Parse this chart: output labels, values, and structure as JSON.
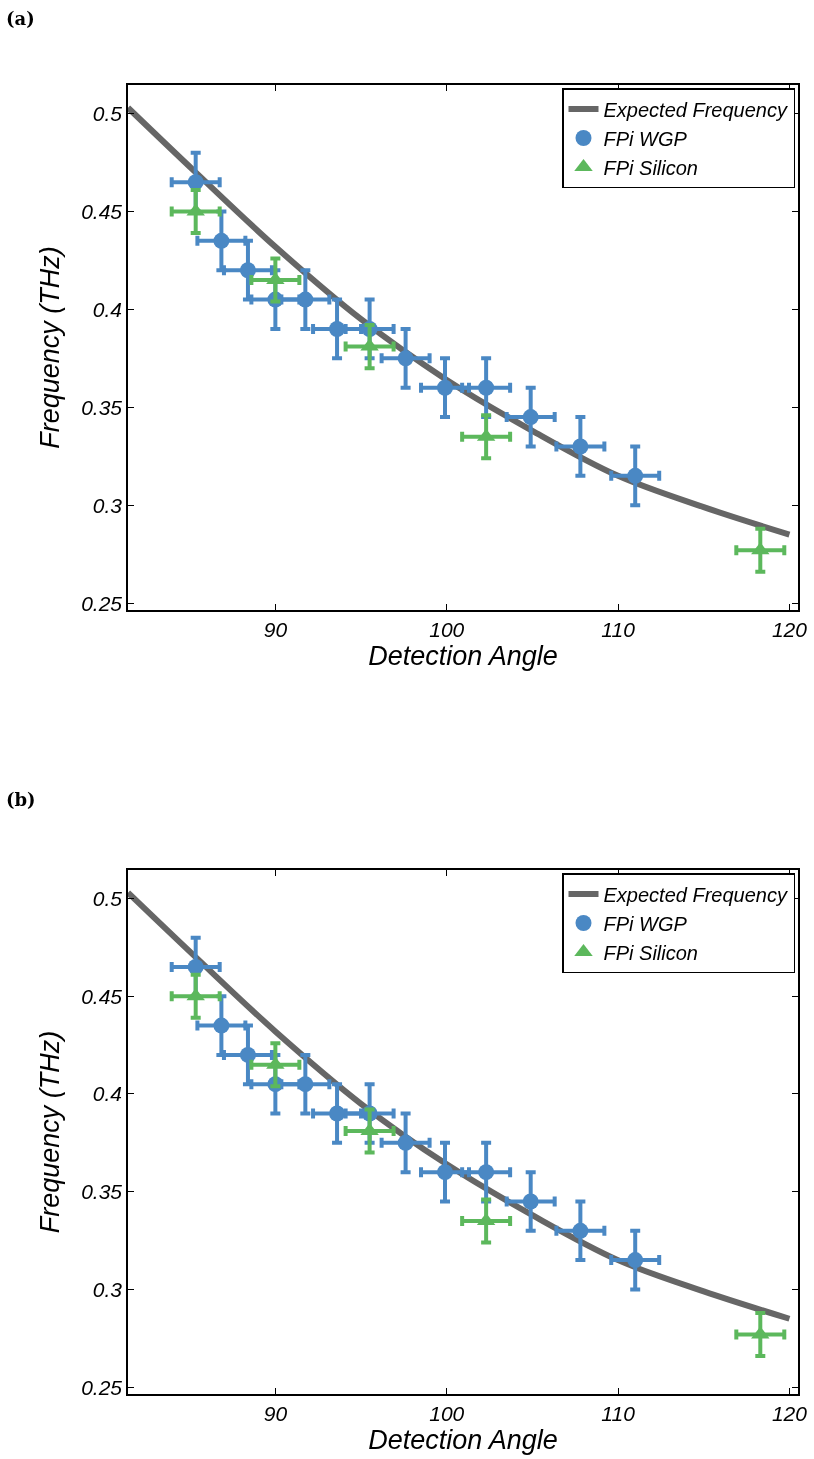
{
  "chart_data": [
    {
      "type": "scatter",
      "title": "(a)",
      "xlabel": "Detection Angle",
      "ylabel": "Frequency (THz)",
      "xlim": [
        81.4,
        120.5
      ],
      "ylim": [
        0.2465,
        0.5146
      ],
      "xticks": [
        90,
        100,
        110,
        120
      ],
      "yticks": [
        0.25,
        0.3,
        0.35,
        0.4,
        0.45,
        0.5
      ],
      "legend": "top right",
      "series": [
        {
          "name": "Expected Frequency",
          "type": "line",
          "color": "#666666",
          "line_style": "solid",
          "marker": "none",
          "x": [
            81.4,
            85.35,
            90,
            95,
            100,
            105,
            110,
            115,
            120
          ],
          "values": [
            0.503,
            0.47,
            0.432,
            0.395,
            0.364,
            0.338,
            0.315,
            0.299,
            0.285
          ]
        },
        {
          "name": "FPi WGP",
          "type": "scatter",
          "color": "#4a88c4",
          "marker": "circle",
          "x": [
            85.35,
            86.85,
            88.4,
            90.0,
            91.75,
            93.6,
            95.5,
            97.6,
            99.9,
            102.3,
            104.9,
            107.8,
            111.0
          ],
          "values": [
            0.465,
            0.435,
            0.42,
            0.405,
            0.405,
            0.39,
            0.39,
            0.375,
            0.36,
            0.36,
            0.345,
            0.33,
            0.315
          ],
          "errors": [
            0.015,
            0.015,
            0.015,
            0.015,
            0.015,
            0.015,
            0.015,
            0.015,
            0.015,
            0.015,
            0.015,
            0.015,
            0.015
          ],
          "xerrors": [
            1.4,
            1.4,
            1.4,
            1.4,
            1.4,
            1.4,
            1.4,
            1.4,
            1.4,
            1.4,
            1.4,
            1.4,
            1.4
          ]
        },
        {
          "name": "FPi Silicon",
          "type": "scatter",
          "color": "#5cb85c",
          "marker": "triangle",
          "x": [
            85.35,
            90.0,
            95.5,
            102.3,
            118.3
          ],
          "values": [
            0.45,
            0.415,
            0.381,
            0.335,
            0.277
          ],
          "errors": [
            0.011,
            0.011,
            0.011,
            0.011,
            0.011
          ],
          "xerrors": [
            1.4,
            1.4,
            1.4,
            1.4,
            1.4
          ]
        }
      ]
    },
    {
      "type": "scatter",
      "title": "(b)",
      "xlabel": "Detection Angle",
      "ylabel": "Frequency (THz)",
      "xlim": [
        81.4,
        120.5
      ],
      "ylim": [
        0.2465,
        0.5146
      ],
      "xticks": [
        90,
        100,
        110,
        120
      ],
      "yticks": [
        0.25,
        0.3,
        0.35,
        0.4,
        0.45,
        0.5
      ],
      "legend": "top right",
      "series": [
        {
          "name": "Expected Frequency",
          "type": "line",
          "color": "#666666",
          "line_style": "solid",
          "marker": "none",
          "x": [
            81.4,
            85.35,
            90,
            95,
            100,
            105,
            110,
            115,
            120
          ],
          "values": [
            0.503,
            0.47,
            0.432,
            0.395,
            0.364,
            0.338,
            0.315,
            0.299,
            0.285
          ]
        },
        {
          "name": "FPi WGP",
          "type": "scatter",
          "color": "#4a88c4",
          "marker": "circle",
          "x": [
            85.35,
            86.85,
            88.4,
            90.0,
            91.75,
            93.6,
            95.5,
            97.6,
            99.9,
            102.3,
            104.9,
            107.8,
            111.0
          ],
          "values": [
            0.465,
            0.435,
            0.42,
            0.405,
            0.405,
            0.39,
            0.39,
            0.375,
            0.36,
            0.36,
            0.345,
            0.33,
            0.315
          ],
          "errors": [
            0.015,
            0.015,
            0.015,
            0.015,
            0.015,
            0.015,
            0.015,
            0.015,
            0.015,
            0.015,
            0.015,
            0.015,
            0.015
          ],
          "xerrors": [
            1.4,
            1.4,
            1.4,
            1.4,
            1.4,
            1.4,
            1.4,
            1.4,
            1.4,
            1.4,
            1.4,
            1.4,
            1.4
          ]
        },
        {
          "name": "FPi Silicon",
          "type": "scatter",
          "color": "#5cb85c",
          "marker": "triangle",
          "x": [
            85.35,
            90.0,
            95.5,
            102.3,
            118.3
          ],
          "values": [
            0.45,
            0.415,
            0.381,
            0.335,
            0.277
          ],
          "errors": [
            0.011,
            0.011,
            0.011,
            0.011,
            0.011
          ],
          "xerrors": [
            1.4,
            1.4,
            1.4,
            1.4,
            1.4
          ]
        }
      ]
    }
  ]
}
